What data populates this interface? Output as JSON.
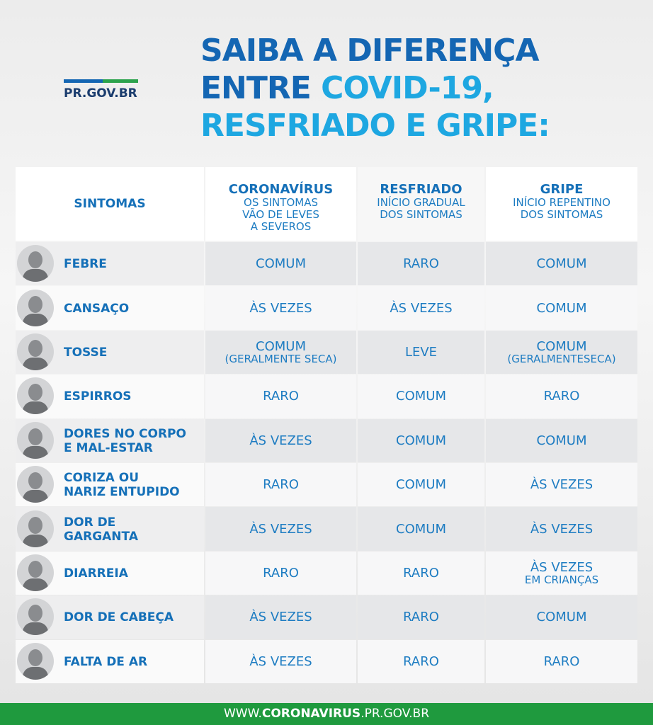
{
  "logo": "PR.GOV.BR",
  "title": {
    "line1": "SAIBA A DIFERENÇA",
    "line2a": "ENTRE",
    "line2b": "COVID-19,",
    "line3": "RESFRIADO E GRIPE:"
  },
  "table": {
    "header": {
      "symptom": "SINTOMAS",
      "columns": [
        {
          "title": "CORONAVÍRUS",
          "subtitle": [
            "OS SINTOMAS",
            "VÃO DE LEVES",
            "A SEVEROS"
          ]
        },
        {
          "title": "RESFRIADO",
          "subtitle": [
            "INÍCIO GRADUAL",
            "DOS SINTOMAS"
          ]
        },
        {
          "title": "GRIPE",
          "subtitle": [
            "INÍCIO REPENTINO",
            "DOS SINTOMAS"
          ]
        }
      ]
    },
    "rows": [
      {
        "symptom": [
          "FEBRE"
        ],
        "cells": [
          [
            "COMUM"
          ],
          [
            "RARO"
          ],
          [
            "COMUM"
          ]
        ]
      },
      {
        "symptom": [
          "CANSAÇO"
        ],
        "cells": [
          [
            "ÀS VEZES"
          ],
          [
            "ÀS VEZES"
          ],
          [
            "COMUM"
          ]
        ]
      },
      {
        "symptom": [
          "TOSSE"
        ],
        "cells": [
          [
            "COMUM",
            "(GERALMENTE SECA)"
          ],
          [
            "LEVE"
          ],
          [
            "COMUM",
            "(GERALMENTESECA)"
          ]
        ]
      },
      {
        "symptom": [
          "ESPIRROS"
        ],
        "cells": [
          [
            "RARO"
          ],
          [
            "COMUM"
          ],
          [
            "RARO"
          ]
        ]
      },
      {
        "symptom": [
          "DORES NO CORPO",
          "E MAL-ESTAR"
        ],
        "cells": [
          [
            "ÀS VEZES"
          ],
          [
            "COMUM"
          ],
          [
            "COMUM"
          ]
        ]
      },
      {
        "symptom": [
          "CORIZA OU",
          "NARIZ ENTUPIDO"
        ],
        "cells": [
          [
            "RARO"
          ],
          [
            "COMUM"
          ],
          [
            "ÀS VEZES"
          ]
        ]
      },
      {
        "symptom": [
          "DOR DE",
          "GARGANTA"
        ],
        "cells": [
          [
            "ÀS VEZES"
          ],
          [
            "COMUM"
          ],
          [
            "ÀS VEZES"
          ]
        ]
      },
      {
        "symptom": [
          "DIARREIA"
        ],
        "cells": [
          [
            "RARO"
          ],
          [
            "RARO"
          ],
          [
            "ÀS VEZES",
            "EM CRIANÇAS"
          ]
        ]
      },
      {
        "symptom": [
          "DOR DE CABEÇA"
        ],
        "cells": [
          [
            "ÀS VEZES"
          ],
          [
            "RARO"
          ],
          [
            "COMUM"
          ]
        ]
      },
      {
        "symptom": [
          "FALTA DE AR"
        ],
        "cells": [
          [
            "ÀS VEZES"
          ],
          [
            "RARO"
          ],
          [
            "RARO"
          ]
        ]
      }
    ]
  },
  "footer": {
    "prefix": "WWW.",
    "domain": "CORONAVIRUS",
    "suffix": ".PR.GOV.BR"
  }
}
